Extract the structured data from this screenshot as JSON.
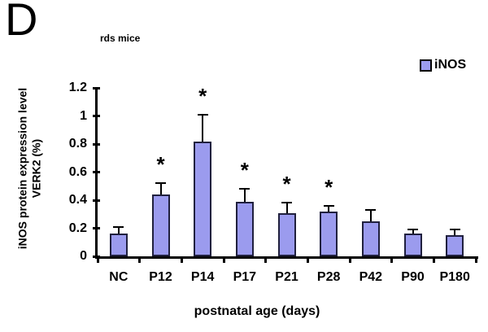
{
  "panel_label": "D",
  "chart_data": {
    "type": "bar",
    "title": "rds mice",
    "series_name": "iNOS",
    "categories": [
      "NC",
      "P12",
      "P14",
      "P17",
      "P21",
      "P28",
      "P42",
      "P90",
      "P180"
    ],
    "values": [
      0.16,
      0.44,
      0.82,
      0.39,
      0.31,
      0.32,
      0.25,
      0.16,
      0.15
    ],
    "errors": [
      0.05,
      0.08,
      0.19,
      0.09,
      0.07,
      0.04,
      0.08,
      0.03,
      0.04
    ],
    "significance": [
      false,
      true,
      true,
      true,
      true,
      true,
      false,
      false,
      false
    ],
    "significance_marker": "*",
    "xlabel": "postnatal age (days)",
    "ylabel_line1": "iNOS protein expression level",
    "ylabel_line2": "VERK2 (%)",
    "ytick_values": [
      0,
      0.2,
      0.4,
      0.6,
      0.8,
      1,
      1.2
    ],
    "ytick_labels": [
      "0",
      "0.2",
      "0.4",
      "0.6",
      "0.8",
      "1",
      "1.2"
    ],
    "ylim": [
      0,
      1.2
    ],
    "grid": false,
    "legend_position": "top-right",
    "bar_fill": "#9b9bee",
    "bar_border": "#20203e",
    "axis_color": "#000000",
    "text_color": "#000000"
  }
}
